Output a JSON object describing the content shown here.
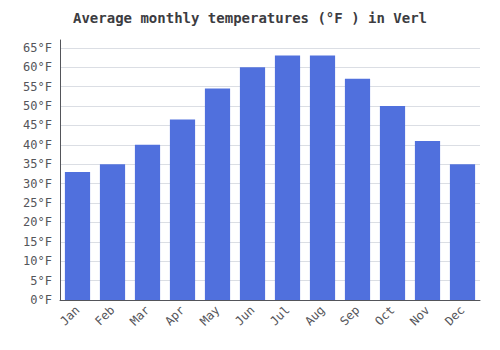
{
  "chart_data": {
    "type": "bar",
    "title": "Average monthly temperatures (°F ) in Verl",
    "categories": [
      "Jan",
      "Feb",
      "Mar",
      "Apr",
      "May",
      "Jun",
      "Jul",
      "Aug",
      "Sep",
      "Oct",
      "Nov",
      "Dec"
    ],
    "values": [
      33,
      35,
      40,
      46.5,
      54.5,
      60,
      63,
      63,
      57,
      50,
      41,
      35
    ],
    "ylim": [
      0,
      67
    ],
    "yticks": [
      {
        "value": 0,
        "label": "0°F"
      },
      {
        "value": 5,
        "label": "5°F"
      },
      {
        "value": 10,
        "label": "10°F"
      },
      {
        "value": 15,
        "label": "15°F"
      },
      {
        "value": 20,
        "label": "20°F"
      },
      {
        "value": 25,
        "label": "25°F"
      },
      {
        "value": 30,
        "label": "30°F"
      },
      {
        "value": 35,
        "label": "35°F"
      },
      {
        "value": 40,
        "label": "40°F"
      },
      {
        "value": 45,
        "label": "45°F"
      },
      {
        "value": 50,
        "label": "50°F"
      },
      {
        "value": 55,
        "label": "55°F"
      },
      {
        "value": 60,
        "label": "60°F"
      },
      {
        "value": 65,
        "label": "65°F"
      }
    ],
    "grid": true
  }
}
